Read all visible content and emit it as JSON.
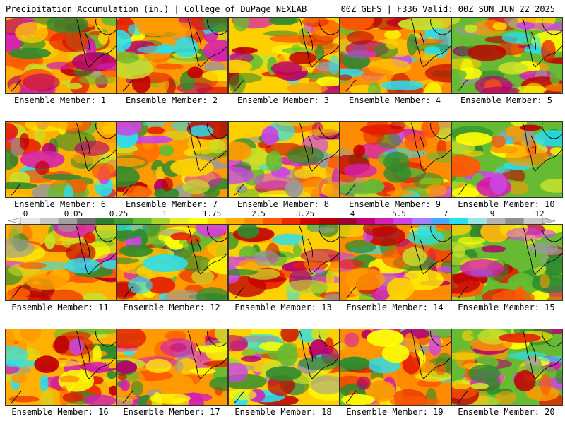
{
  "header": {
    "left": "Precipitation Accumulation (in.) | College of DuPage NEXLAB",
    "right": "00Z GEFS | F336 Valid: 00Z SUN JUN 22 2025"
  },
  "members": [
    {
      "label": "Ensemble Member: 1"
    },
    {
      "label": "Ensemble Member: 2"
    },
    {
      "label": "Ensemble Member: 3"
    },
    {
      "label": "Ensemble Member: 4"
    },
    {
      "label": "Ensemble Member: 5"
    },
    {
      "label": "Ensemble Member: 6"
    },
    {
      "label": "Ensemble Member: 7"
    },
    {
      "label": "Ensemble Member: 8"
    },
    {
      "label": "Ensemble Member: 9"
    },
    {
      "label": "Ensemble Member: 10"
    },
    {
      "label": "Ensemble Member: 11"
    },
    {
      "label": "Ensemble Member: 12"
    },
    {
      "label": "Ensemble Member: 13"
    },
    {
      "label": "Ensemble Member: 14"
    },
    {
      "label": "Ensemble Member: 15"
    },
    {
      "label": "Ensemble Member: 16"
    },
    {
      "label": "Ensemble Member: 17"
    },
    {
      "label": "Ensemble Member: 18"
    },
    {
      "label": "Ensemble Member: 19"
    },
    {
      "label": "Ensemble Member: 20"
    }
  ],
  "colorbar": {
    "tick_labels": [
      "0",
      "0.05",
      "0.25",
      "1",
      "1.75",
      "2.5",
      "3.25",
      "4",
      "5.5",
      "7",
      "9",
      "12"
    ],
    "colors": [
      "#e6e6e6",
      "#c8c8c8",
      "#a0a0a0",
      "#6e6e6e",
      "#2e7d32",
      "#3f9b32",
      "#66bb33",
      "#a8d52c",
      "#e6f020",
      "#ffff00",
      "#ffd800",
      "#ffb000",
      "#ff8c00",
      "#ff5a00",
      "#f02800",
      "#d80000",
      "#b40000",
      "#a00030",
      "#c0007a",
      "#d41fb4",
      "#cc44e6",
      "#a880ff",
      "#4aa8ff",
      "#28e0f0",
      "#9ae6e6",
      "#b4b4b4",
      "#909090",
      "#c8c8c8"
    ]
  }
}
